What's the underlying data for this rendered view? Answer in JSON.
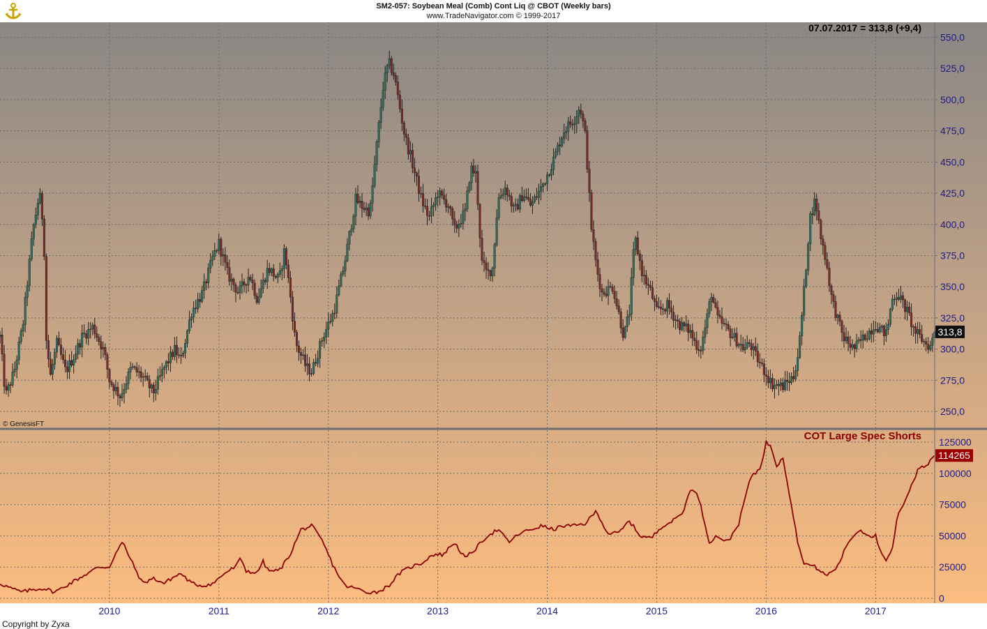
{
  "header": {
    "title": "SM2-057:  Soybean Meal (Comb) Cont Liq @ CBOT  (Weekly bars)",
    "subtitle": "www.TradeNavigator.com © 1999-2017",
    "logo": "anchor-logo-icon"
  },
  "price_readout": "07.07.2017 = 313,8 (+9,4)",
  "last_price_label": "313,8",
  "genesis_credit": "© GenesisFT",
  "lower_panel_title": "COT Large Spec Shorts",
  "last_indicator_label": "114265",
  "footer_credit": "Copyright by Zyxa",
  "colors": {
    "up_candle": "#2f6e5c",
    "down_candle": "#7a2a2a",
    "indicator_line": "#8b0000",
    "axis_text": "#1c1c8c",
    "bg_top": "#8a8785",
    "bg_bottom": "#fbbc7f",
    "price_badge": "#111111",
    "indicator_badge": "#9b0000"
  },
  "chart_data": [
    {
      "type": "candlestick",
      "title": "",
      "x_ticks": [
        "2010",
        "2011",
        "2012",
        "2013",
        "2014",
        "2015",
        "2016",
        "2017"
      ],
      "y_ticks": [
        "250,0",
        "275,0",
        "300,0",
        "325,0",
        "350,0",
        "375,0",
        "400,0",
        "425,0",
        "450,0",
        "475,0",
        "500,0",
        "525,0",
        "550,0"
      ],
      "ylim": [
        240,
        560
      ],
      "grid": true,
      "x_range": [
        2009.0,
        2017.54
      ],
      "anchors": [
        [
          2009.0,
          310
        ],
        [
          2009.05,
          262
        ],
        [
          2009.13,
          282
        ],
        [
          2009.21,
          320
        ],
        [
          2009.3,
          395
        ],
        [
          2009.36,
          425
        ],
        [
          2009.4,
          395
        ],
        [
          2009.42,
          310
        ],
        [
          2009.46,
          278
        ],
        [
          2009.52,
          305
        ],
        [
          2009.6,
          282
        ],
        [
          2009.68,
          295
        ],
        [
          2009.75,
          310
        ],
        [
          2009.85,
          318
        ],
        [
          2009.95,
          298
        ],
        [
          2010.0,
          275
        ],
        [
          2010.1,
          262
        ],
        [
          2010.2,
          285
        ],
        [
          2010.3,
          278
        ],
        [
          2010.4,
          265
        ],
        [
          2010.5,
          285
        ],
        [
          2010.6,
          300
        ],
        [
          2010.65,
          290
        ],
        [
          2010.75,
          330
        ],
        [
          2010.85,
          345
        ],
        [
          2010.95,
          375
        ],
        [
          2011.0,
          385
        ],
        [
          2011.08,
          360
        ],
        [
          2011.18,
          345
        ],
        [
          2011.28,
          360
        ],
        [
          2011.35,
          340
        ],
        [
          2011.45,
          365
        ],
        [
          2011.55,
          355
        ],
        [
          2011.6,
          380
        ],
        [
          2011.65,
          345
        ],
        [
          2011.7,
          305
        ],
        [
          2011.8,
          285
        ],
        [
          2011.85,
          282
        ],
        [
          2011.95,
          310
        ],
        [
          2012.05,
          330
        ],
        [
          2012.15,
          370
        ],
        [
          2012.25,
          420
        ],
        [
          2012.3,
          415
        ],
        [
          2012.38,
          410
        ],
        [
          2012.45,
          470
        ],
        [
          2012.5,
          510
        ],
        [
          2012.55,
          530
        ],
        [
          2012.6,
          520
        ],
        [
          2012.7,
          470
        ],
        [
          2012.75,
          455
        ],
        [
          2012.85,
          420
        ],
        [
          2012.92,
          405
        ],
        [
          2013.0,
          425
        ],
        [
          2013.1,
          415
        ],
        [
          2013.15,
          395
        ],
        [
          2013.25,
          410
        ],
        [
          2013.3,
          445
        ],
        [
          2013.35,
          440
        ],
        [
          2013.4,
          370
        ],
        [
          2013.45,
          360
        ],
        [
          2013.5,
          365
        ],
        [
          2013.55,
          420
        ],
        [
          2013.62,
          430
        ],
        [
          2013.7,
          410
        ],
        [
          2013.78,
          425
        ],
        [
          2013.85,
          415
        ],
        [
          2013.95,
          430
        ],
        [
          2014.05,
          450
        ],
        [
          2014.15,
          475
        ],
        [
          2014.25,
          485
        ],
        [
          2014.3,
          495
        ],
        [
          2014.35,
          470
        ],
        [
          2014.4,
          400
        ],
        [
          2014.45,
          365
        ],
        [
          2014.5,
          345
        ],
        [
          2014.6,
          350
        ],
        [
          2014.7,
          310
        ],
        [
          2014.75,
          330
        ],
        [
          2014.8,
          390
        ],
        [
          2014.87,
          360
        ],
        [
          2014.95,
          345
        ],
        [
          2015.0,
          330
        ],
        [
          2015.1,
          335
        ],
        [
          2015.2,
          320
        ],
        [
          2015.3,
          315
        ],
        [
          2015.35,
          305
        ],
        [
          2015.4,
          300
        ],
        [
          2015.45,
          320
        ],
        [
          2015.5,
          345
        ],
        [
          2015.55,
          325
        ],
        [
          2015.6,
          320
        ],
        [
          2015.7,
          310
        ],
        [
          2015.8,
          300
        ],
        [
          2015.85,
          305
        ],
        [
          2015.9,
          295
        ],
        [
          2016.0,
          280
        ],
        [
          2016.05,
          272
        ],
        [
          2016.15,
          270
        ],
        [
          2016.25,
          278
        ],
        [
          2016.3,
          300
        ],
        [
          2016.35,
          350
        ],
        [
          2016.4,
          405
        ],
        [
          2016.45,
          420
        ],
        [
          2016.5,
          390
        ],
        [
          2016.55,
          370
        ],
        [
          2016.6,
          340
        ],
        [
          2016.65,
          325
        ],
        [
          2016.7,
          310
        ],
        [
          2016.8,
          300
        ],
        [
          2016.9,
          310
        ],
        [
          2017.0,
          320
        ],
        [
          2017.05,
          315
        ],
        [
          2017.1,
          312
        ],
        [
          2017.15,
          340
        ],
        [
          2017.2,
          345
        ],
        [
          2017.3,
          328
        ],
        [
          2017.35,
          315
        ],
        [
          2017.4,
          310
        ],
        [
          2017.45,
          305
        ],
        [
          2017.5,
          302
        ],
        [
          2017.54,
          313.8
        ]
      ],
      "last_value": 313.8
    },
    {
      "type": "line",
      "title": "COT Large Spec Shorts",
      "y_ticks": [
        "0",
        "25000",
        "50000",
        "75000",
        "100000",
        "125000"
      ],
      "ylim": [
        0,
        125000
      ],
      "grid": true,
      "series": [
        {
          "name": "COT Large Spec Shorts",
          "points": [
            [
              2009.0,
              12000
            ],
            [
              2009.1,
              8000
            ],
            [
              2009.2,
              5000
            ],
            [
              2009.3,
              7000
            ],
            [
              2009.4,
              8000
            ],
            [
              2009.5,
              5000
            ],
            [
              2009.6,
              10000
            ],
            [
              2009.7,
              15000
            ],
            [
              2009.8,
              20000
            ],
            [
              2009.9,
              25000
            ],
            [
              2010.0,
              25000
            ],
            [
              2010.05,
              35000
            ],
            [
              2010.12,
              45000
            ],
            [
              2010.2,
              30000
            ],
            [
              2010.3,
              12000
            ],
            [
              2010.4,
              16000
            ],
            [
              2010.5,
              12000
            ],
            [
              2010.55,
              15000
            ],
            [
              2010.65,
              20000
            ],
            [
              2010.75,
              12000
            ],
            [
              2010.85,
              10000
            ],
            [
              2010.95,
              12000
            ],
            [
              2011.05,
              20000
            ],
            [
              2011.15,
              25000
            ],
            [
              2011.2,
              32000
            ],
            [
              2011.25,
              22000
            ],
            [
              2011.35,
              20000
            ],
            [
              2011.4,
              30000
            ],
            [
              2011.45,
              22000
            ],
            [
              2011.55,
              22000
            ],
            [
              2011.65,
              35000
            ],
            [
              2011.75,
              55000
            ],
            [
              2011.85,
              58000
            ],
            [
              2011.95,
              45000
            ],
            [
              2012.05,
              25000
            ],
            [
              2012.15,
              10000
            ],
            [
              2012.25,
              8000
            ],
            [
              2012.35,
              5000
            ],
            [
              2012.45,
              5000
            ],
            [
              2012.55,
              10000
            ],
            [
              2012.65,
              20000
            ],
            [
              2012.75,
              25000
            ],
            [
              2012.85,
              28000
            ],
            [
              2012.95,
              35000
            ],
            [
              2013.05,
              35000
            ],
            [
              2013.15,
              45000
            ],
            [
              2013.25,
              32000
            ],
            [
              2013.35,
              40000
            ],
            [
              2013.45,
              50000
            ],
            [
              2013.55,
              55000
            ],
            [
              2013.65,
              45000
            ],
            [
              2013.75,
              52000
            ],
            [
              2013.85,
              55000
            ],
            [
              2013.95,
              58000
            ],
            [
              2014.05,
              55000
            ],
            [
              2014.15,
              58000
            ],
            [
              2014.25,
              58000
            ],
            [
              2014.35,
              60000
            ],
            [
              2014.45,
              70000
            ],
            [
              2014.55,
              52000
            ],
            [
              2014.65,
              52000
            ],
            [
              2014.75,
              62000
            ],
            [
              2014.85,
              50000
            ],
            [
              2014.95,
              48000
            ],
            [
              2015.05,
              58000
            ],
            [
              2015.15,
              62000
            ],
            [
              2015.25,
              70000
            ],
            [
              2015.3,
              88000
            ],
            [
              2015.38,
              82000
            ],
            [
              2015.48,
              45000
            ],
            [
              2015.55,
              50000
            ],
            [
              2015.65,
              45000
            ],
            [
              2015.75,
              60000
            ],
            [
              2015.85,
              95000
            ],
            [
              2015.95,
              105000
            ],
            [
              2016.0,
              125000
            ],
            [
              2016.05,
              120000
            ],
            [
              2016.1,
              105000
            ],
            [
              2016.15,
              115000
            ],
            [
              2016.2,
              90000
            ],
            [
              2016.3,
              40000
            ],
            [
              2016.35,
              28000
            ],
            [
              2016.45,
              25000
            ],
            [
              2016.55,
              18000
            ],
            [
              2016.65,
              25000
            ],
            [
              2016.75,
              45000
            ],
            [
              2016.85,
              55000
            ],
            [
              2016.95,
              50000
            ],
            [
              2017.0,
              50000
            ],
            [
              2017.05,
              35000
            ],
            [
              2017.1,
              30000
            ],
            [
              2017.15,
              38000
            ],
            [
              2017.2,
              65000
            ],
            [
              2017.3,
              85000
            ],
            [
              2017.4,
              105000
            ],
            [
              2017.45,
              105000
            ],
            [
              2017.54,
              114265
            ]
          ]
        }
      ],
      "last_value": 114265
    }
  ]
}
